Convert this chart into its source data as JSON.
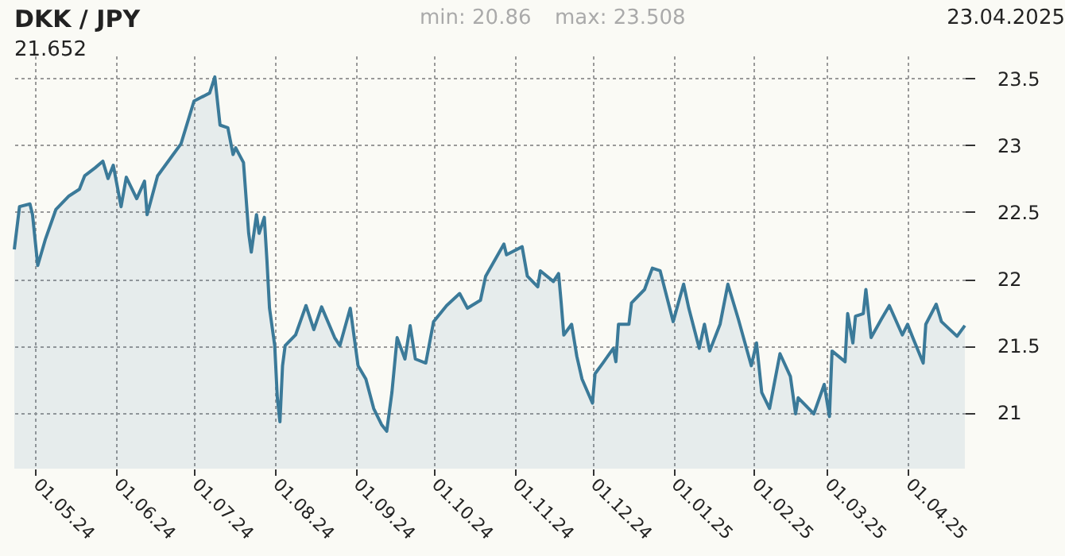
{
  "chart_data": {
    "type": "area",
    "title": "DKK / JPY",
    "annotations": [
      "21.652",
      "min: 20.86",
      "max: 23.508",
      "23.04.2025"
    ],
    "xlim": [
      "2024-04-23",
      "2025-04-23"
    ],
    "xticks": [
      {
        "value": "2024-05-01",
        "label": "01.05.24"
      },
      {
        "value": "2024-06-01",
        "label": "01.06.24"
      },
      {
        "value": "2024-07-01",
        "label": "01.07.24"
      },
      {
        "value": "2024-08-01",
        "label": "01.08.24"
      },
      {
        "value": "2024-09-01",
        "label": "01.09.24"
      },
      {
        "value": "2024-10-01",
        "label": "01.10.24"
      },
      {
        "value": "2024-11-01",
        "label": "01.11.24"
      },
      {
        "value": "2024-12-01",
        "label": "01.12.24"
      },
      {
        "value": "2025-01-01",
        "label": "01.01.25"
      },
      {
        "value": "2025-02-01",
        "label": "01.02.25"
      },
      {
        "value": "2025-03-01",
        "label": "01.03.25"
      },
      {
        "value": "2025-04-01",
        "label": "01.04.25"
      }
    ],
    "ylim": [
      20.58,
      23.67
    ],
    "yticks": [
      21,
      21.5,
      22,
      22.5,
      23,
      23.5
    ],
    "grid": true,
    "series": [
      {
        "color": "#3b7a99",
        "x": [
          "2024-04-23",
          "2024-04-25",
          "2024-04-29",
          "2024-04-30",
          "2024-05-02",
          "2024-05-05",
          "2024-05-09",
          "2024-05-14",
          "2024-05-18",
          "2024-05-20",
          "2024-05-24",
          "2024-05-27",
          "2024-05-29",
          "2024-05-31",
          "2024-06-03",
          "2024-06-05",
          "2024-06-09",
          "2024-06-12",
          "2024-06-13",
          "2024-06-17",
          "2024-06-23",
          "2024-06-26",
          "2024-07-01",
          "2024-07-07",
          "2024-07-09",
          "2024-07-11",
          "2024-07-14",
          "2024-07-16",
          "2024-07-17",
          "2024-07-20",
          "2024-07-22",
          "2024-07-23",
          "2024-07-25",
          "2024-07-26",
          "2024-07-28",
          "2024-07-29",
          "2024-07-30",
          "2024-08-01",
          "2024-08-02",
          "2024-08-03",
          "2024-08-04",
          "2024-08-05",
          "2024-08-09",
          "2024-08-13",
          "2024-08-16",
          "2024-08-19",
          "2024-08-24",
          "2024-08-26",
          "2024-08-30",
          "2024-09-02",
          "2024-09-05",
          "2024-09-08",
          "2024-09-11",
          "2024-09-13",
          "2024-09-15",
          "2024-09-17",
          "2024-09-20",
          "2024-09-22",
          "2024-09-24",
          "2024-09-28",
          "2024-10-01",
          "2024-10-06",
          "2024-10-11",
          "2024-10-14",
          "2024-10-19",
          "2024-10-21",
          "2024-10-28",
          "2024-10-29",
          "2024-11-04",
          "2024-11-06",
          "2024-11-10",
          "2024-11-11",
          "2024-11-16",
          "2024-11-18",
          "2024-11-19",
          "2024-11-20",
          "2024-11-23",
          "2024-11-25",
          "2024-11-27",
          "2024-12-01",
          "2024-12-02",
          "2024-12-05",
          "2024-12-09",
          "2024-12-10",
          "2024-12-11",
          "2024-12-15",
          "2024-12-16",
          "2024-12-21",
          "2024-12-24",
          "2024-12-27",
          "2025-01-01",
          "2025-01-05",
          "2025-01-07",
          "2025-01-11",
          "2025-01-13",
          "2025-01-15",
          "2025-01-19",
          "2025-01-22",
          "2025-01-26",
          "2025-01-31",
          "2025-02-02",
          "2025-02-04",
          "2025-02-07",
          "2025-02-11",
          "2025-02-15",
          "2025-02-17",
          "2025-02-18",
          "2025-02-24",
          "2025-02-28",
          "2025-03-02",
          "2025-03-03",
          "2025-03-08",
          "2025-03-09",
          "2025-03-11",
          "2025-03-12",
          "2025-03-15",
          "2025-03-16",
          "2025-03-18",
          "2025-03-22",
          "2025-03-25",
          "2025-03-30",
          "2025-04-01",
          "2025-04-03",
          "2025-04-07",
          "2025-04-08",
          "2025-04-12",
          "2025-04-14",
          "2025-04-20",
          "2025-04-23"
        ],
        "values": [
          22.22,
          22.54,
          22.56,
          22.48,
          22.1,
          22.3,
          22.52,
          22.62,
          22.67,
          22.77,
          22.83,
          22.88,
          22.75,
          22.85,
          22.54,
          22.76,
          22.6,
          22.73,
          22.48,
          22.77,
          22.93,
          23.01,
          23.33,
          23.39,
          23.51,
          23.15,
          23.13,
          22.93,
          22.98,
          22.87,
          22.34,
          22.2,
          22.48,
          22.34,
          22.46,
          22.14,
          21.78,
          21.5,
          21.11,
          20.93,
          21.35,
          21.5,
          21.58,
          21.8,
          21.62,
          21.79,
          21.56,
          21.5,
          21.78,
          21.35,
          21.25,
          21.03,
          20.91,
          20.86,
          21.15,
          21.56,
          21.4,
          21.65,
          21.4,
          21.37,
          21.68,
          21.8,
          21.89,
          21.78,
          21.84,
          22.02,
          22.26,
          22.18,
          22.24,
          22.02,
          21.94,
          22.06,
          21.98,
          22.04,
          21.82,
          21.58,
          21.66,
          21.42,
          21.25,
          21.07,
          21.29,
          21.37,
          21.48,
          21.38,
          21.66,
          21.66,
          21.82,
          21.92,
          22.08,
          22.06,
          21.68,
          21.96,
          21.78,
          21.48,
          21.66,
          21.46,
          21.66,
          21.96,
          21.7,
          21.35,
          21.52,
          21.15,
          21.03,
          21.44,
          21.27,
          20.99,
          21.11,
          20.99,
          21.21,
          20.97,
          21.46,
          21.38,
          21.74,
          21.52,
          21.72,
          21.74,
          21.92,
          21.56,
          21.7,
          21.8,
          21.58,
          21.66,
          21.56,
          21.37,
          21.66,
          21.81,
          21.68,
          21.57,
          21.65
        ]
      }
    ]
  }
}
